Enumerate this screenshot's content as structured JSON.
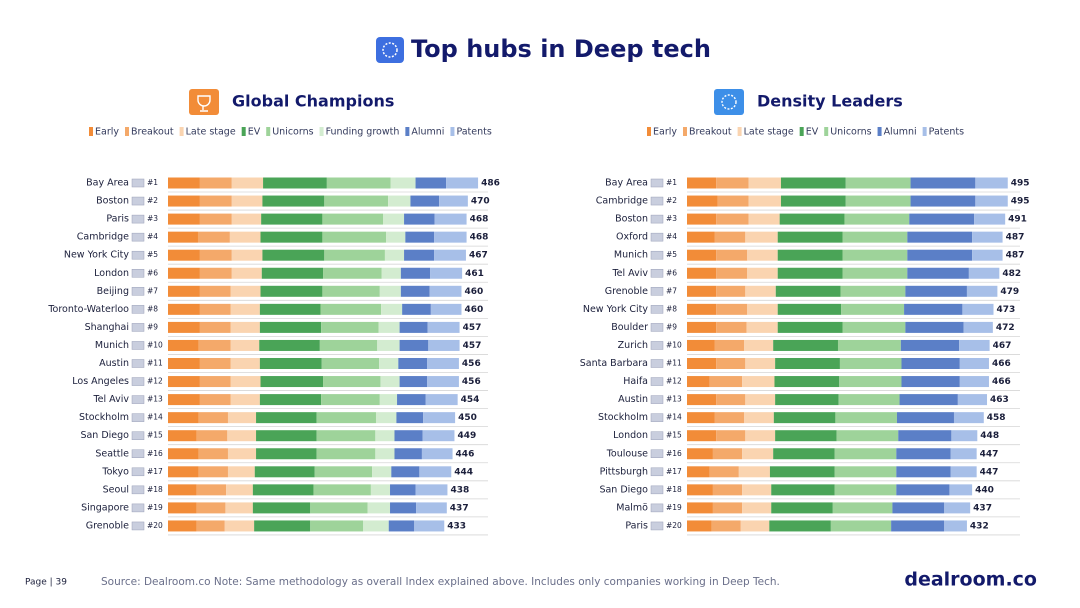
{
  "title": "Top hubs in Deep tech",
  "footer": {
    "page": "Page | 39",
    "note": "Source: Dealroom.co  Note: Same methodology as overall Index explained above. Includes only companies working in Deep Tech.",
    "logo": "dealroom.co"
  },
  "chart_data": [
    {
      "type": "stacked-bar",
      "title": "Global Champions",
      "categories": [
        "Bay Area",
        "Boston",
        "Paris",
        "Cambridge",
        "New York City",
        "London",
        "Beijing",
        "Toronto-Waterloo",
        "Shanghai",
        "Munich",
        "Austin",
        "Los Angeles",
        "Tel Aviv",
        "Stockholm",
        "San Diego",
        "Seattle",
        "Tokyo",
        "Seoul",
        "Singapore",
        "Grenoble"
      ],
      "ranks": [
        "#1",
        "#2",
        "#3",
        "#4",
        "#5",
        "#6",
        "#7",
        "#8",
        "#9",
        "#10",
        "#11",
        "#12",
        "#13",
        "#14",
        "#15",
        "#16",
        "#17",
        "#18",
        "#19",
        "#20"
      ],
      "totals": [
        486,
        470,
        468,
        468,
        467,
        461,
        460,
        460,
        457,
        457,
        456,
        456,
        454,
        450,
        449,
        446,
        444,
        438,
        437,
        433
      ],
      "series": [
        {
          "name": "Early",
          "color": "#f28c38",
          "values": [
            50,
            50,
            50,
            47,
            50,
            50,
            50,
            50,
            50,
            48,
            50,
            50,
            50,
            48,
            45,
            48,
            48,
            45,
            45,
            45
          ]
        },
        {
          "name": "Breakout",
          "color": "#f4a96a",
          "values": [
            50,
            50,
            50,
            50,
            50,
            50,
            48,
            48,
            48,
            50,
            48,
            48,
            48,
            46,
            48,
            46,
            46,
            46,
            45,
            44
          ]
        },
        {
          "name": "Late stage",
          "color": "#fad4b0",
          "values": [
            49,
            48,
            46,
            48,
            48,
            47,
            47,
            46,
            46,
            45,
            46,
            47,
            46,
            44,
            45,
            44,
            42,
            42,
            43,
            46
          ]
        },
        {
          "name": "EV",
          "color": "#4aa457",
          "values": [
            100,
            97,
            96,
            97,
            97,
            96,
            97,
            95,
            96,
            95,
            97,
            98,
            96,
            95,
            95,
            95,
            94,
            95,
            90,
            88
          ]
        },
        {
          "name": "Unicorns",
          "color": "#9ed39a",
          "values": [
            100,
            100,
            95,
            100,
            95,
            92,
            90,
            95,
            90,
            90,
            90,
            90,
            92,
            93,
            92,
            92,
            90,
            90,
            90,
            83
          ]
        },
        {
          "name": "Funding growth",
          "color": "#d3ecd0",
          "values": [
            39,
            35,
            33,
            30,
            30,
            30,
            33,
            33,
            33,
            35,
            30,
            30,
            27,
            32,
            30,
            30,
            30,
            30,
            35,
            40
          ]
        },
        {
          "name": "Alumni",
          "color": "#5b7fc7",
          "values": [
            48,
            45,
            48,
            45,
            47,
            46,
            45,
            45,
            44,
            45,
            45,
            43,
            45,
            42,
            44,
            43,
            44,
            40,
            41,
            40
          ]
        },
        {
          "name": "Patents",
          "color": "#a7bfe8",
          "values": [
            50,
            45,
            50,
            51,
            50,
            50,
            50,
            48,
            50,
            49,
            50,
            50,
            50,
            50,
            50,
            48,
            50,
            50,
            48,
            47
          ]
        }
      ]
    },
    {
      "type": "stacked-bar",
      "title": "Density Leaders",
      "categories": [
        "Bay Area",
        "Cambridge",
        "Boston",
        "Oxford",
        "Munich",
        "Tel Aviv",
        "Grenoble",
        "New York City",
        "Boulder",
        "Zurich",
        "Santa Barbara",
        "Haifa",
        "Austin",
        "Stockholm",
        "London",
        "Toulouse",
        "Pittsburgh",
        "San Diego",
        "Malmö",
        "Paris"
      ],
      "ranks": [
        "#1",
        "#2",
        "#3",
        "#4",
        "#5",
        "#6",
        "#7",
        "#8",
        "#9",
        "#10",
        "#11",
        "#12",
        "#13",
        "#14",
        "#15",
        "#16",
        "#17",
        "#18",
        "#19",
        "#20"
      ],
      "totals": [
        495,
        495,
        491,
        487,
        487,
        482,
        479,
        473,
        472,
        467,
        466,
        466,
        463,
        458,
        448,
        447,
        447,
        440,
        437,
        432
      ],
      "series": [
        {
          "name": "Early",
          "color": "#f28c38",
          "values": [
            45,
            47,
            45,
            43,
            45,
            45,
            45,
            45,
            45,
            43,
            45,
            35,
            45,
            43,
            45,
            40,
            35,
            40,
            40,
            38
          ]
        },
        {
          "name": "Breakout",
          "color": "#f4a96a",
          "values": [
            50,
            48,
            50,
            47,
            48,
            48,
            45,
            48,
            47,
            45,
            45,
            50,
            45,
            45,
            45,
            45,
            45,
            45,
            45,
            45
          ]
        },
        {
          "name": "Late stage",
          "color": "#fad4b0",
          "values": [
            50,
            50,
            48,
            50,
            47,
            47,
            47,
            47,
            48,
            45,
            46,
            50,
            46,
            46,
            46,
            48,
            48,
            45,
            45,
            44
          ]
        },
        {
          "name": "EV",
          "color": "#4aa457",
          "values": [
            100,
            100,
            100,
            100,
            100,
            100,
            100,
            98,
            100,
            100,
            100,
            100,
            98,
            95,
            95,
            95,
            100,
            98,
            95,
            95
          ]
        },
        {
          "name": "Unicorns",
          "color": "#9ed39a",
          "values": [
            100,
            100,
            100,
            100,
            100,
            100,
            100,
            97,
            97,
            97,
            95,
            96,
            94,
            95,
            95,
            95,
            95,
            95,
            92,
            93
          ]
        },
        {
          "name": "Alumni",
          "color": "#5b7fc7",
          "values": [
            100,
            100,
            100,
            100,
            100,
            95,
            95,
            90,
            90,
            90,
            90,
            90,
            90,
            88,
            82,
            84,
            84,
            82,
            80,
            82
          ]
        },
        {
          "name": "Patents",
          "color": "#a7bfe8",
          "values": [
            50,
            50,
            48,
            47,
            47,
            47,
            47,
            48,
            45,
            47,
            45,
            45,
            45,
            46,
            40,
            40,
            40,
            35,
            40,
            35
          ]
        }
      ]
    }
  ]
}
